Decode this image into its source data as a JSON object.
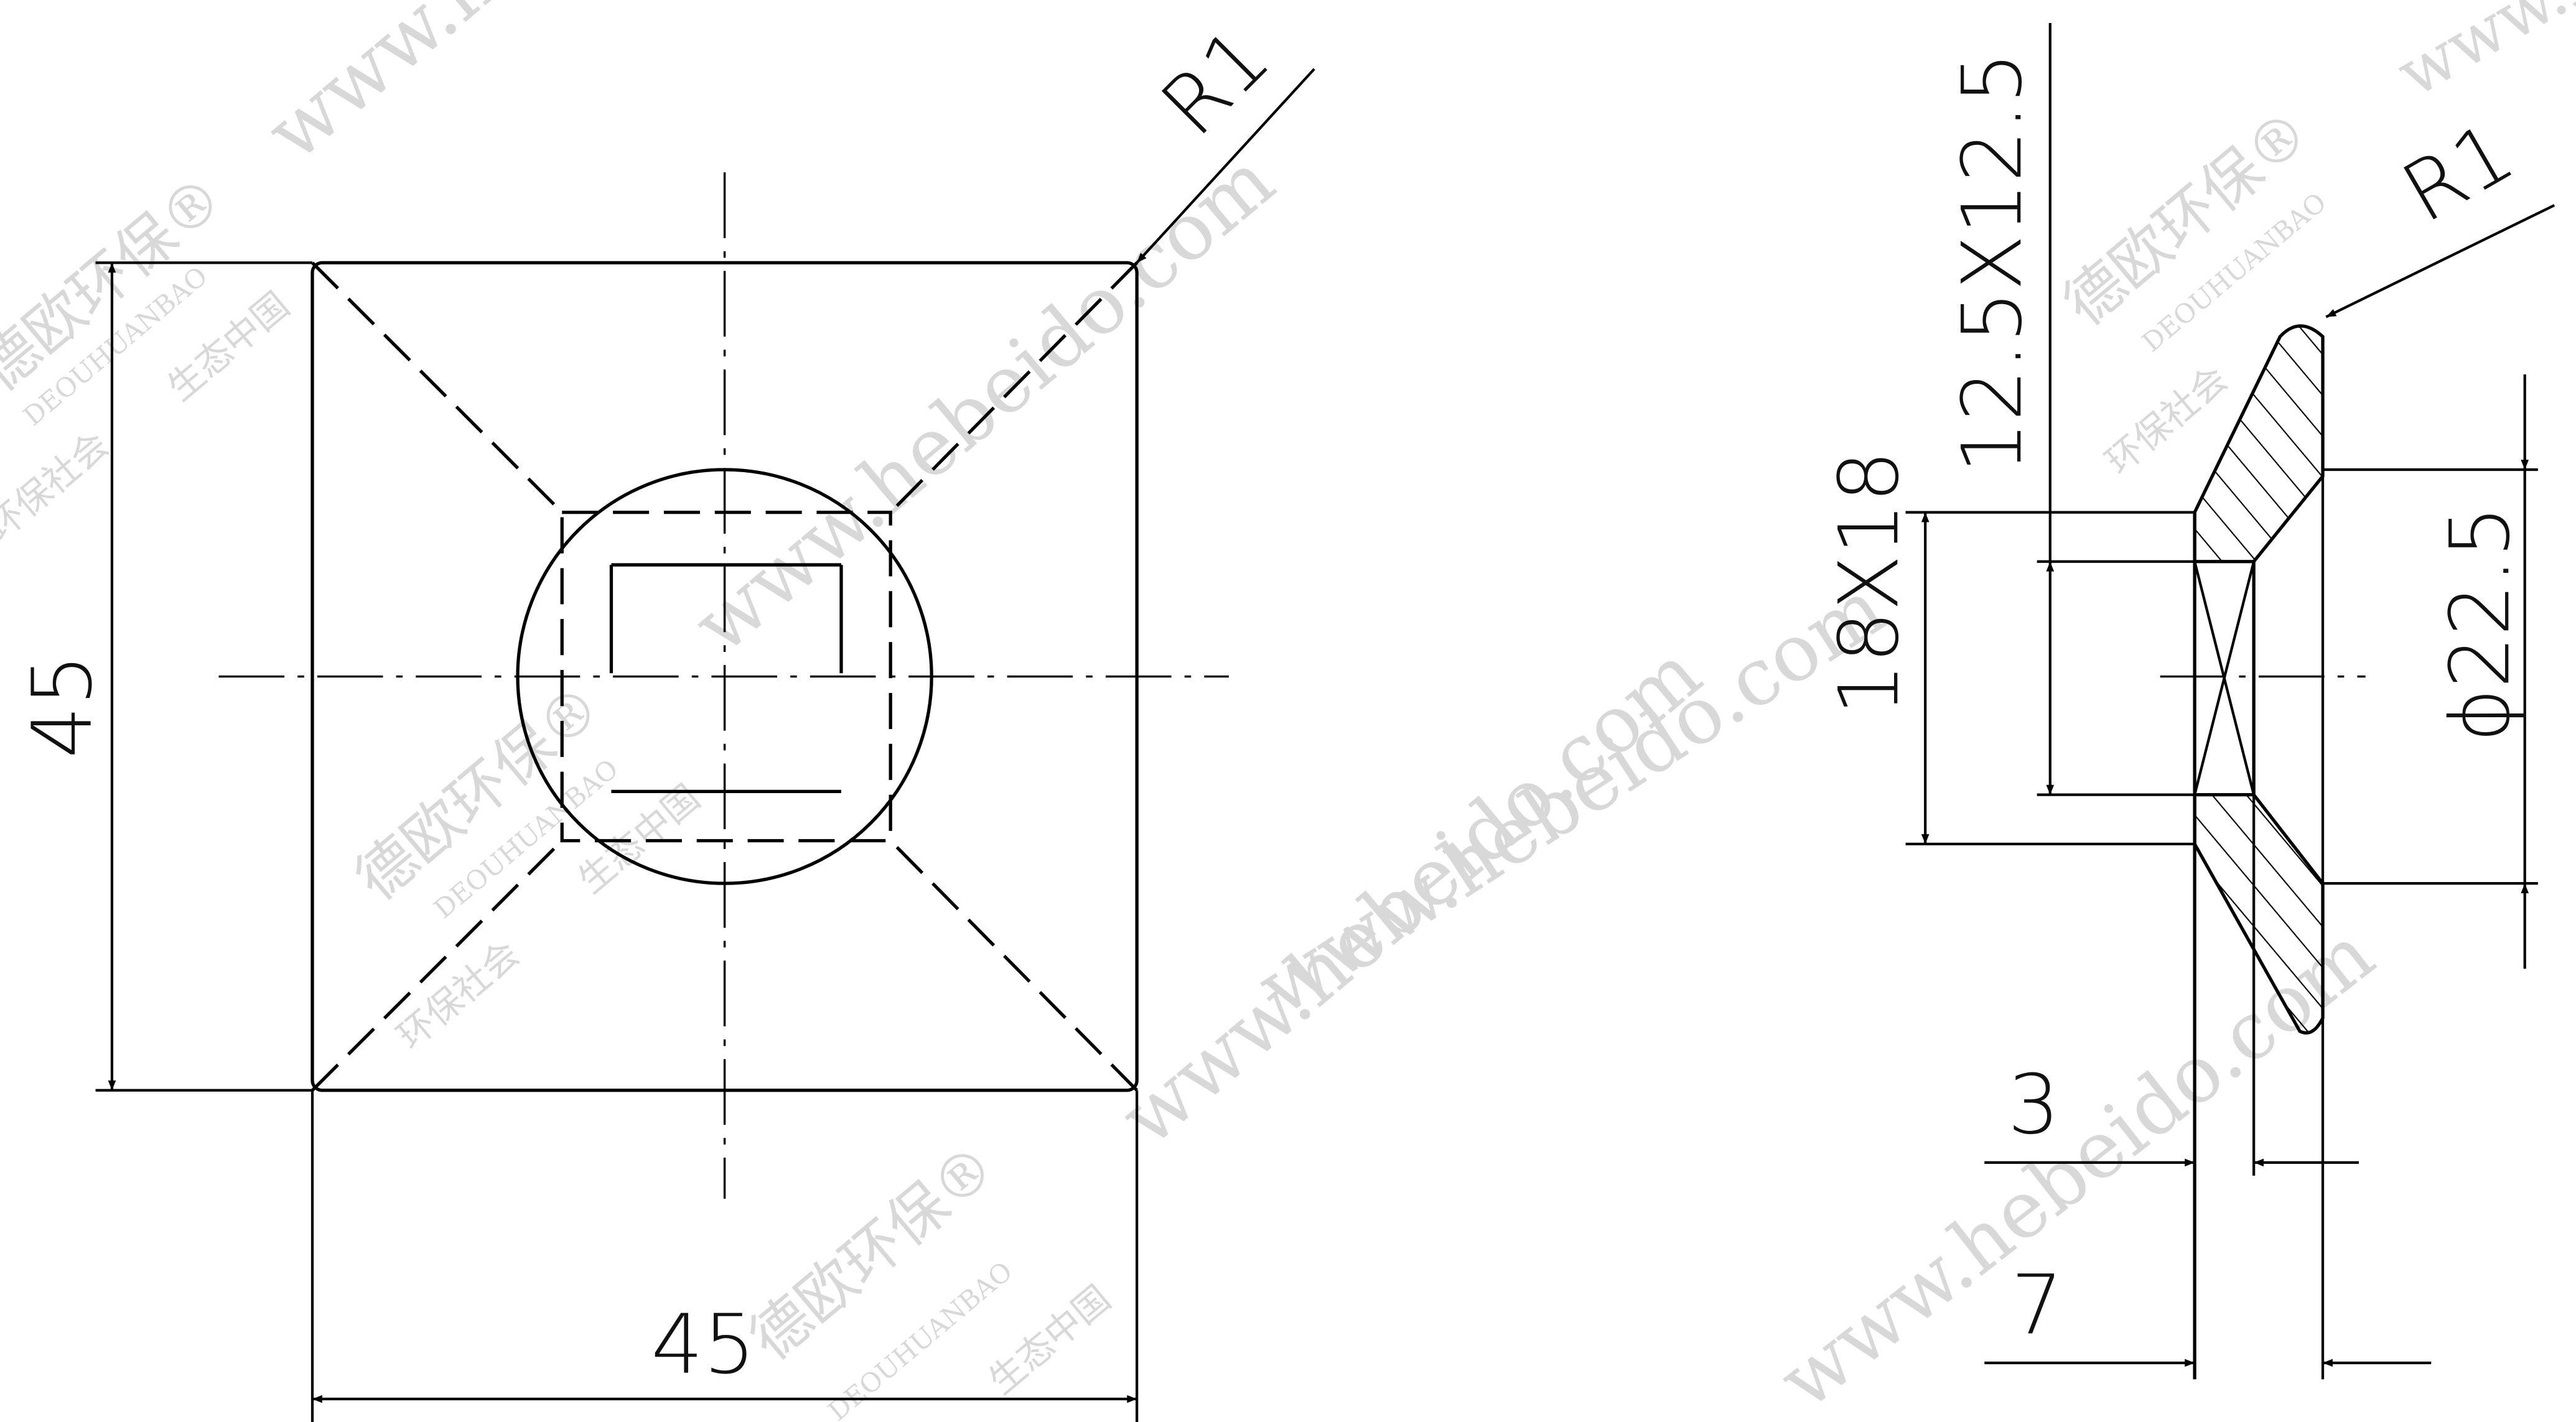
{
  "front_view": {
    "corner_radius": "R1",
    "height_dimension": "45",
    "width_dimension": "45"
  },
  "side_view": {
    "outer_square": "18X18",
    "inner_square": "12.5X12.5",
    "corner_radius": "R1",
    "diameter": "ϕ22.5",
    "thickness": "3",
    "total_depth": "7"
  },
  "watermarks": {
    "site": "www.hebeido.com",
    "brand": "德欧环保®",
    "brand_latin": "DEOUHUANBAO",
    "slogan_1": "环保社会",
    "slogan_2": "生态中国"
  }
}
